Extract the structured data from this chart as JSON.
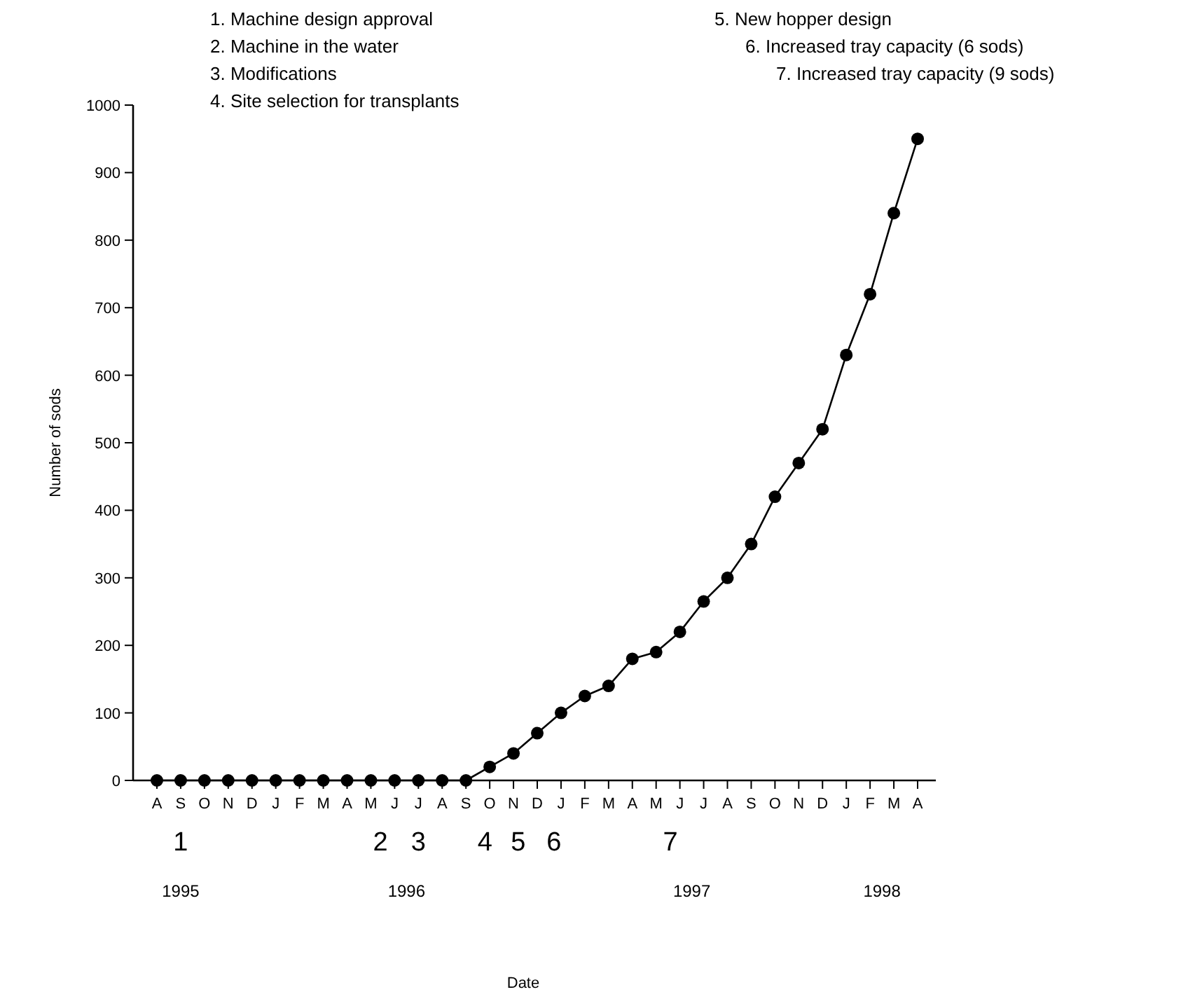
{
  "chart_data": {
    "type": "line",
    "ylabel": "Number of sods",
    "categories": [
      "A",
      "S",
      "O",
      "N",
      "D",
      "J",
      "F",
      "M",
      "A",
      "M",
      "J",
      "J",
      "A",
      "S",
      "O",
      "N",
      "D",
      "J",
      "F",
      "M",
      "A",
      "M",
      "J",
      "J",
      "A",
      "S",
      "O",
      "N",
      "D",
      "J",
      "F",
      "M",
      "A"
    ],
    "series": [
      {
        "color": "#000000",
        "values": [
          0,
          0,
          0,
          0,
          0,
          0,
          0,
          0,
          0,
          0,
          0,
          0,
          0,
          0,
          20,
          40,
          70,
          100,
          125,
          140,
          180,
          190,
          220,
          265,
          300,
          350,
          420,
          470,
          520,
          630,
          720,
          840,
          950
        ]
      }
    ],
    "ylim": [
      0,
      1000
    ],
    "yticks": [
      0,
      100,
      200,
      300,
      400,
      500,
      600,
      700,
      800,
      900,
      1000
    ],
    "marker": "circle",
    "line_style": "solid",
    "grid": false,
    "annotations": [
      "1. Machine design approval",
      "2. Machine in the water",
      "3. Modifications",
      "4. Site selection for transplants",
      "5. New hopper design",
      "6. Increased tray capacity (6 sods)",
      "7. Increased tray capacity (9 sods)",
      "1",
      "2",
      "3",
      "4",
      "5",
      "6",
      "7",
      "1995",
      "1996",
      "1997",
      "1998",
      "Date"
    ]
  }
}
